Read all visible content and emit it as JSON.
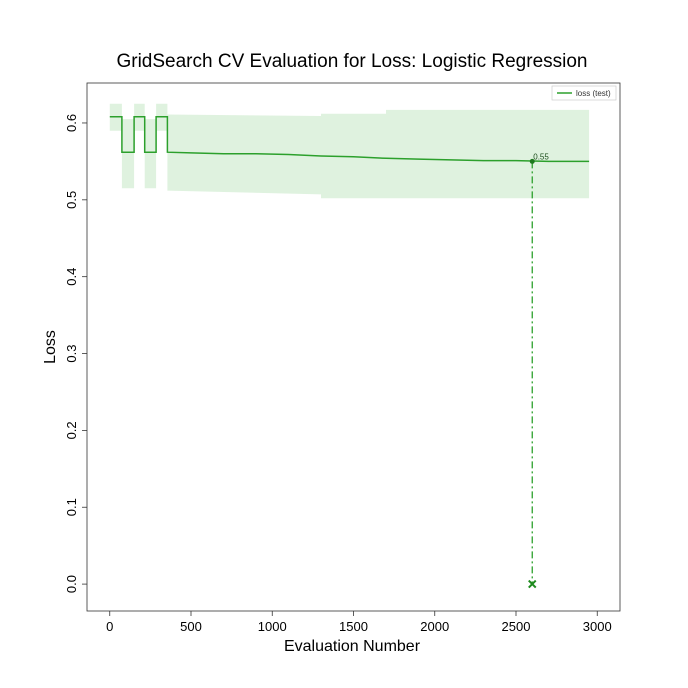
{
  "chart_data": {
    "type": "line",
    "title": "GridSearch CV Evaluation for Loss: Logistic Regression",
    "xlabel": "Evaluation Number",
    "ylabel": "Loss",
    "xlim": [
      -140,
      3140
    ],
    "ylim": [
      -0.035,
      0.652
    ],
    "xticks": [
      0,
      500,
      1000,
      1500,
      2000,
      2500,
      3000
    ],
    "yticks": [
      0.0,
      0.1,
      0.2,
      0.3,
      0.4,
      0.5,
      0.6
    ],
    "grid": false,
    "legend_position": "top-right",
    "series": [
      {
        "name": "loss (test)",
        "color": "#2ca02c",
        "points": [
          [
            0,
            0.608
          ],
          [
            75,
            0.608
          ],
          [
            75,
            0.562
          ],
          [
            150,
            0.562
          ],
          [
            150,
            0.608
          ],
          [
            215,
            0.608
          ],
          [
            215,
            0.562
          ],
          [
            285,
            0.562
          ],
          [
            285,
            0.608
          ],
          [
            355,
            0.608
          ],
          [
            355,
            0.562
          ],
          [
            500,
            0.561
          ],
          [
            700,
            0.56
          ],
          [
            900,
            0.56
          ],
          [
            1100,
            0.559
          ],
          [
            1300,
            0.557
          ],
          [
            1500,
            0.556
          ],
          [
            1700,
            0.554
          ],
          [
            1900,
            0.553
          ],
          [
            2100,
            0.552
          ],
          [
            2300,
            0.551
          ],
          [
            2500,
            0.551
          ],
          [
            2700,
            0.55
          ],
          [
            2950,
            0.55
          ]
        ]
      }
    ],
    "band": {
      "color": "#d4edd4",
      "upper": [
        [
          0,
          0.625
        ],
        [
          75,
          0.625
        ],
        [
          75,
          0.605
        ],
        [
          150,
          0.605
        ],
        [
          150,
          0.625
        ],
        [
          215,
          0.625
        ],
        [
          215,
          0.605
        ],
        [
          285,
          0.605
        ],
        [
          285,
          0.625
        ],
        [
          355,
          0.625
        ],
        [
          355,
          0.611
        ],
        [
          1300,
          0.609
        ],
        [
          1300,
          0.612
        ],
        [
          1700,
          0.612
        ],
        [
          1700,
          0.617
        ],
        [
          2950,
          0.617
        ]
      ],
      "lower": [
        [
          0,
          0.59
        ],
        [
          75,
          0.59
        ],
        [
          75,
          0.515
        ],
        [
          150,
          0.515
        ],
        [
          150,
          0.59
        ],
        [
          215,
          0.59
        ],
        [
          215,
          0.515
        ],
        [
          285,
          0.515
        ],
        [
          285,
          0.59
        ],
        [
          355,
          0.59
        ],
        [
          355,
          0.512
        ],
        [
          1300,
          0.507
        ],
        [
          1300,
          0.502
        ],
        [
          2950,
          0.502
        ]
      ]
    },
    "best": {
      "x": 2600,
      "y": 0.55,
      "label": "0.55",
      "line_color": "#2ca02c",
      "marker": "x"
    }
  }
}
